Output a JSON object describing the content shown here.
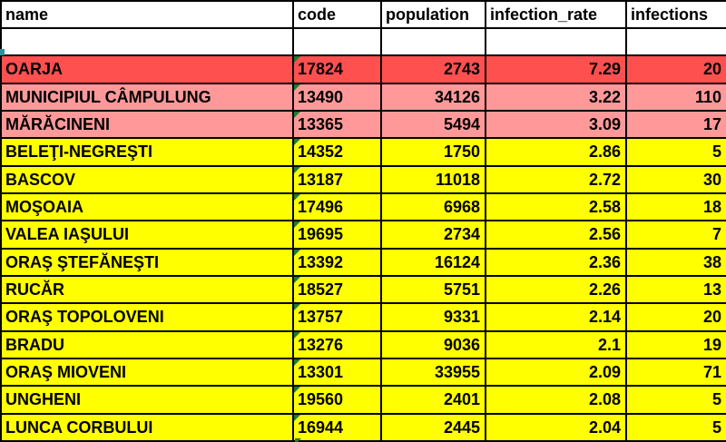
{
  "colors": {
    "red_fill": "#FF5050",
    "pink_fill": "#FF9999",
    "yellow_fill": "#FFFF00",
    "white_fill": "#FFFFFF",
    "indicator_green": "#1F7A33",
    "handle_teal": "#2B93A0",
    "border_black": "#000000"
  },
  "table": {
    "columns": [
      {
        "key": "name",
        "label": "name"
      },
      {
        "key": "code",
        "label": "code"
      },
      {
        "key": "population",
        "label": "population"
      },
      {
        "key": "infection_rate",
        "label": "infection_rate"
      },
      {
        "key": "infections",
        "label": "infections"
      }
    ],
    "rows": [
      {
        "name": "",
        "code": "",
        "population": "",
        "infection_rate": "",
        "infections": "",
        "fill": "white",
        "indicator": false
      },
      {
        "name": "OARJA",
        "code": "17824",
        "population": "2743",
        "infection_rate": "7.29",
        "infections": "20",
        "fill": "red",
        "indicator": true
      },
      {
        "name": "MUNICIPIUL CÂMPULUNG",
        "code": "13490",
        "population": "34126",
        "infection_rate": "3.22",
        "infections": "110",
        "fill": "pink",
        "indicator": true
      },
      {
        "name": "MĂRĂCINENI",
        "code": "13365",
        "population": "5494",
        "infection_rate": "3.09",
        "infections": "17",
        "fill": "pink",
        "indicator": true
      },
      {
        "name": "BELEŢI-NEGREŞTI",
        "code": "14352",
        "population": "1750",
        "infection_rate": "2.86",
        "infections": "5",
        "fill": "yellow",
        "indicator": true
      },
      {
        "name": "BASCOV",
        "code": "13187",
        "population": "11018",
        "infection_rate": "2.72",
        "infections": "30",
        "fill": "yellow",
        "indicator": true
      },
      {
        "name": "MOŞOAIA",
        "code": "17496",
        "population": "6968",
        "infection_rate": "2.58",
        "infections": "18",
        "fill": "yellow",
        "indicator": true
      },
      {
        "name": "VALEA IAŞULUI",
        "code": "19695",
        "population": "2734",
        "infection_rate": "2.56",
        "infections": "7",
        "fill": "yellow",
        "indicator": true
      },
      {
        "name": "ORAŞ ŞTEFĂNEŞTI",
        "code": "13392",
        "population": "16124",
        "infection_rate": "2.36",
        "infections": "38",
        "fill": "yellow",
        "indicator": true
      },
      {
        "name": "RUCĂR",
        "code": "18527",
        "population": "5751",
        "infection_rate": "2.26",
        "infections": "13",
        "fill": "yellow",
        "indicator": true
      },
      {
        "name": "ORAŞ TOPOLOVENI",
        "code": "13757",
        "population": "9331",
        "infection_rate": "2.14",
        "infections": "20",
        "fill": "yellow",
        "indicator": true
      },
      {
        "name": "BRADU",
        "code": "13276",
        "population": "9036",
        "infection_rate": "2.1",
        "infections": "19",
        "fill": "yellow",
        "indicator": true
      },
      {
        "name": "ORAŞ MIOVENI",
        "code": "13301",
        "population": "33955",
        "infection_rate": "2.09",
        "infections": "71",
        "fill": "yellow",
        "indicator": true
      },
      {
        "name": "UNGHENI",
        "code": "19560",
        "population": "2401",
        "infection_rate": "2.08",
        "infections": "5",
        "fill": "yellow",
        "indicator": true
      },
      {
        "name": "LUNCA CORBULUI",
        "code": "16944",
        "population": "2445",
        "infection_rate": "2.04",
        "infections": "5",
        "fill": "yellow",
        "indicator": true
      }
    ]
  }
}
